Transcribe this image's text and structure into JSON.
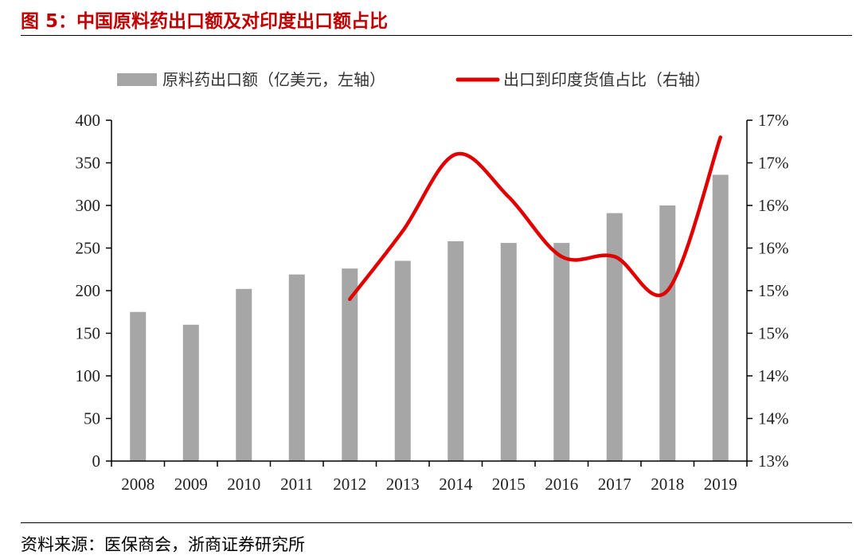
{
  "header": {
    "title": "图 5：中国原料药出口额及对印度出口额占比"
  },
  "footer": {
    "source": "资料来源：医保商会，浙商证券研究所"
  },
  "colors": {
    "bar": "#a6a6a6",
    "line": "#e00000",
    "title": "#c00000"
  },
  "chart_data": {
    "type": "bar",
    "categories": [
      "2008",
      "2009",
      "2010",
      "2011",
      "2012",
      "2013",
      "2014",
      "2015",
      "2016",
      "2017",
      "2018",
      "2019"
    ],
    "series": [
      {
        "name": "原料药出口额（亿美元，左轴）",
        "type": "bar",
        "axis": "left",
        "values": [
          175,
          160,
          202,
          219,
          226,
          235,
          258,
          256,
          256,
          291,
          300,
          336
        ]
      },
      {
        "name": "出口到印度货值占比（右轴）",
        "type": "line",
        "axis": "right",
        "values": [
          null,
          null,
          null,
          null,
          14.9,
          15.7,
          16.6,
          16.1,
          15.4,
          15.4,
          15.0,
          16.8
        ]
      }
    ],
    "y_left": {
      "ylim": [
        0,
        400
      ],
      "ticks": [
        0,
        50,
        100,
        150,
        200,
        250,
        300,
        350,
        400
      ]
    },
    "y_right": {
      "ylim": [
        13,
        17
      ],
      "tick_labels": [
        "13%",
        "14%",
        "14%",
        "15%",
        "15%",
        "16%",
        "16%",
        "17%",
        "17%"
      ]
    },
    "grid": false,
    "legend": "top"
  }
}
